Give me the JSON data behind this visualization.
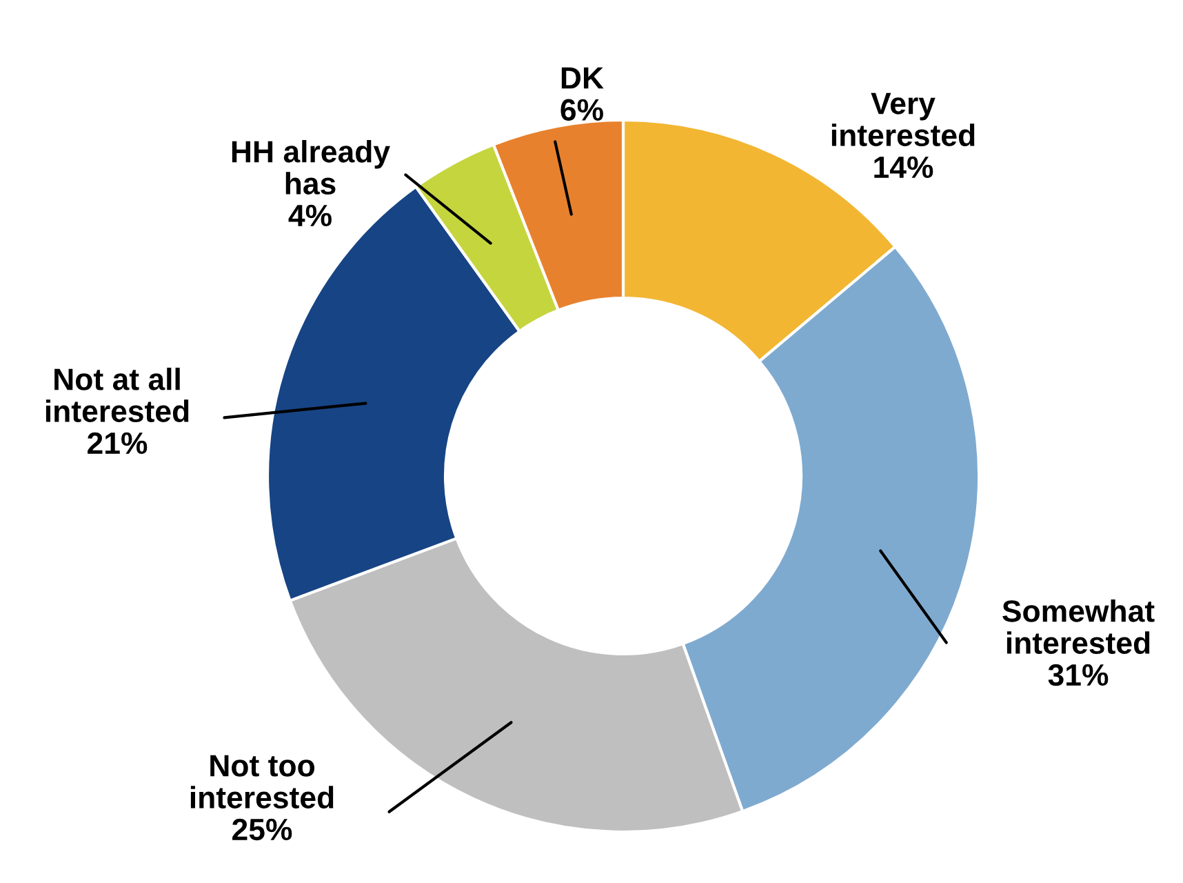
{
  "chart_data": {
    "type": "donut",
    "categories": [
      "Very\ninterested",
      "Somewhat\ninterested",
      "Not too\ninterested",
      "Not at all\ninterested",
      "HH already\nhas",
      "DK"
    ],
    "values": [
      14,
      31,
      25,
      21,
      4,
      6
    ],
    "value_labels": [
      "14%",
      "31%",
      "25%",
      "21%",
      "4%",
      "6%"
    ],
    "colors": [
      "#f2b632",
      "#7faad0",
      "#bfbfbf",
      "#174484",
      "#c5d53e",
      "#e8812d"
    ],
    "legend": false
  }
}
